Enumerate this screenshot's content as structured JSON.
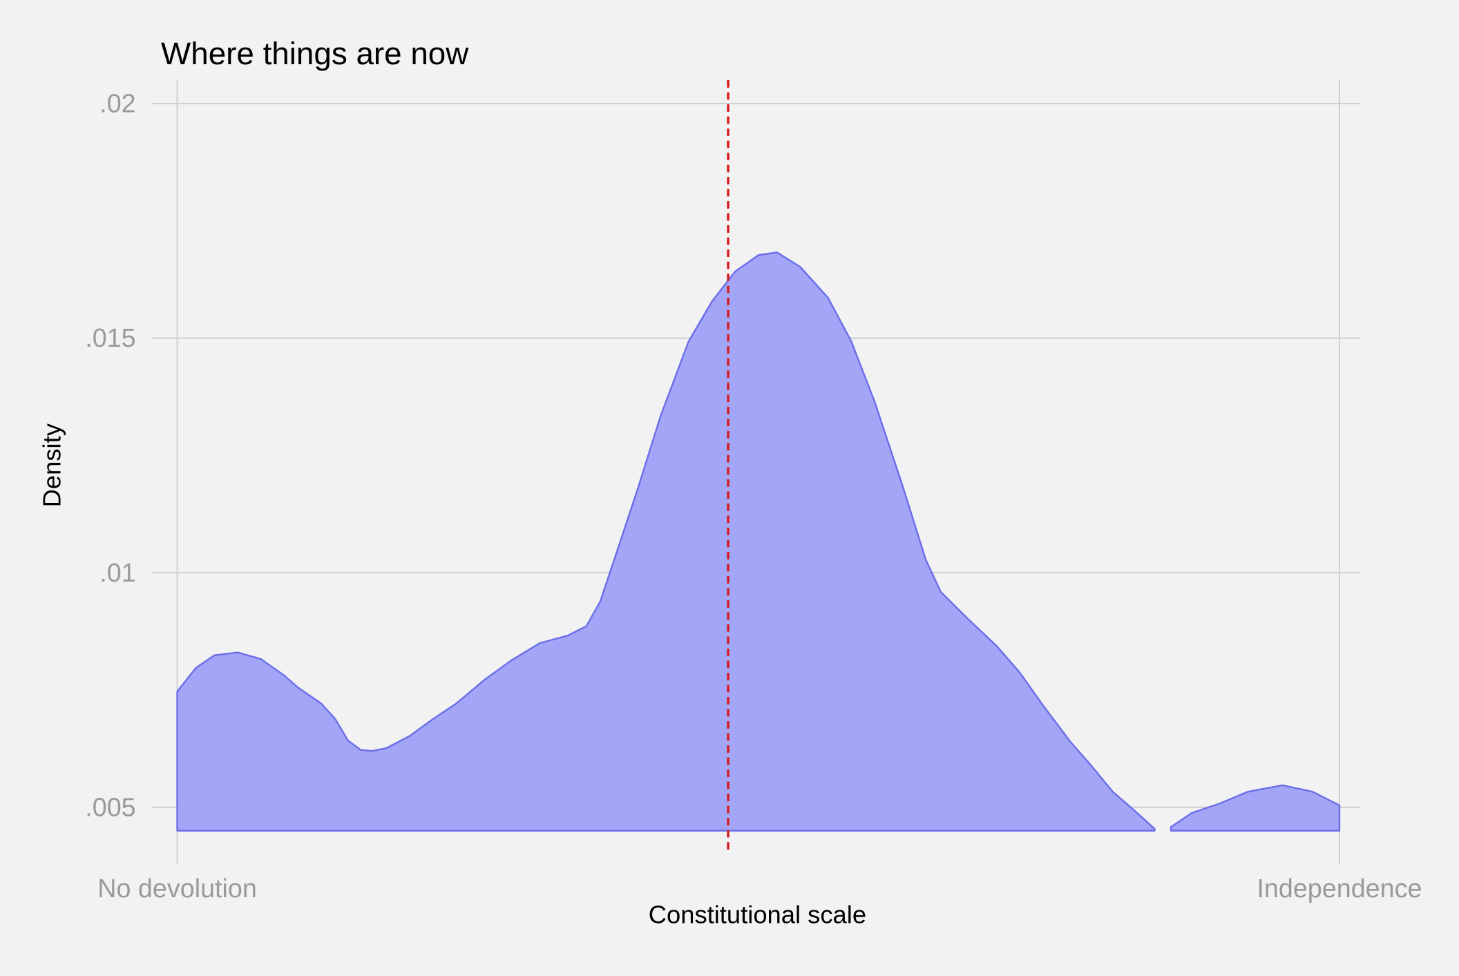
{
  "chart_data": {
    "type": "area",
    "title": "Where things are now",
    "xlabel": "Constitutional scale",
    "ylabel": "Density",
    "x": [
      0,
      1.6,
      3.2,
      5.2,
      7.2,
      9.2,
      10.4,
      12.4,
      13.6,
      14.7,
      15.8,
      16.8,
      18,
      20,
      22,
      24,
      26.4,
      28.8,
      31.2,
      33.6,
      35.2,
      36.4,
      37.6,
      39.6,
      41.6,
      44,
      46,
      48,
      50,
      51.6,
      53.6,
      56,
      58,
      60,
      62.4,
      64.4,
      65.7,
      68.1,
      70.5,
      72.5,
      74.5,
      76.9,
      78.5,
      80.5,
      82.5,
      84.1,
      84.8,
      85.5,
      87.3,
      89.7,
      92.1,
      95.1,
      97.7,
      100
    ],
    "series": [
      {
        "name": "Density",
        "color": "#6b6ee8",
        "fill": "#a3a6f7",
        "values": [
          0.00747,
          0.00797,
          0.00824,
          0.0083,
          0.00816,
          0.00781,
          0.00755,
          0.00721,
          0.00688,
          0.00642,
          0.00622,
          0.0062,
          0.00626,
          0.00652,
          0.00688,
          0.00721,
          0.00771,
          0.00814,
          0.0085,
          0.00866,
          0.00886,
          0.00939,
          0.01028,
          0.01177,
          0.01335,
          0.01493,
          0.01578,
          0.01642,
          0.01677,
          0.01683,
          0.01652,
          0.01586,
          0.01493,
          0.01365,
          0.01186,
          0.01028,
          0.00959,
          0.009,
          0.00844,
          0.00787,
          0.00717,
          0.00638,
          0.00593,
          0.00533,
          0.0049,
          0.00454,
          null,
          0.00458,
          0.00488,
          0.00508,
          0.00533,
          0.00547,
          0.00533,
          0.00504
        ]
      }
    ],
    "fill_base": 0.0045,
    "vline": {
      "value": 47.4,
      "color": "#d7191c",
      "dashed": true
    },
    "xlim": [
      -2.2,
      101.8
    ],
    "xticks": [
      {
        "value": 0,
        "label": "No devolution"
      },
      {
        "value": 100,
        "label": "Independence"
      }
    ],
    "ylim": [
      0.0038,
      0.0205
    ],
    "yticks": [
      {
        "value": 0.005,
        "label": ".005"
      },
      {
        "value": 0.01,
        "label": ".01"
      },
      {
        "value": 0.015,
        "label": ".015"
      },
      {
        "value": 0.02,
        "label": ".02"
      }
    ],
    "grid": true
  }
}
